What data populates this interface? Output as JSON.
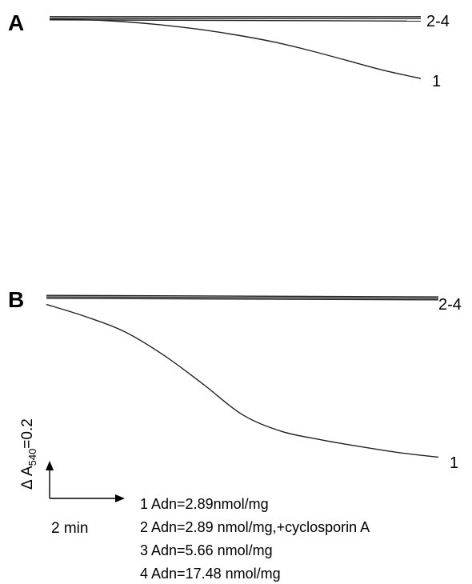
{
  "chart_data": [
    {
      "type": "line",
      "panel": "A",
      "x_unit": "min",
      "y_unit": "ΔA540",
      "xlim": [
        0,
        10
      ],
      "ylim": [
        -0.25,
        0.01
      ],
      "series": [
        {
          "id": "1",
          "label": "1",
          "x": [
            0,
            1,
            2,
            3,
            4,
            5,
            6,
            7,
            8,
            9,
            10
          ],
          "y": [
            0,
            -0.001,
            -0.004,
            -0.009,
            -0.016,
            -0.025,
            -0.036,
            -0.05,
            -0.066,
            -0.082,
            -0.095
          ]
        },
        {
          "id": "2",
          "label": "2-4",
          "x": [
            0,
            10
          ],
          "y": [
            0.004,
            0.004
          ]
        },
        {
          "id": "3",
          "label": "2-4",
          "x": [
            0,
            10
          ],
          "y": [
            0.001,
            0.001
          ]
        },
        {
          "id": "4",
          "label": "2-4",
          "x": [
            0,
            10
          ],
          "y": [
            -0.001,
            -0.003
          ]
        }
      ],
      "trace_label_main": "1",
      "trace_label_group": "2-4"
    },
    {
      "type": "line",
      "panel": "B",
      "x_unit": "min",
      "y_unit": "ΔA540",
      "xlim": [
        0,
        10
      ],
      "ylim": [
        -0.25,
        0.01
      ],
      "series": [
        {
          "id": "1",
          "label": "1",
          "x": [
            0,
            1,
            2,
            3,
            4,
            5,
            6,
            7,
            8,
            9,
            10
          ],
          "y": [
            -0.009,
            -0.025,
            -0.045,
            -0.076,
            -0.114,
            -0.154,
            -0.176,
            -0.187,
            -0.196,
            -0.204,
            -0.21
          ]
        },
        {
          "id": "2",
          "label": "2-4",
          "x": [
            0,
            10
          ],
          "y": [
            0.003,
            0.001
          ]
        },
        {
          "id": "3",
          "label": "2-4",
          "x": [
            0,
            10
          ],
          "y": [
            0.001,
            -0.001
          ]
        },
        {
          "id": "4",
          "label": "2-4",
          "x": [
            0,
            10
          ],
          "y": [
            -0.001,
            -0.003
          ]
        }
      ],
      "trace_label_main": "1",
      "trace_label_group": "2-4"
    }
  ],
  "panels": {
    "a_letter": "A",
    "b_letter": "B"
  },
  "scale_bar": {
    "time_label": "2 min",
    "absorbance_prefix": "Δ A",
    "absorbance_subscript": "540",
    "absorbance_suffix": "=0.2",
    "time_value_min": 2,
    "absorbance_value": 0.2
  },
  "legend": {
    "items": [
      "1 Adn=2.89nmol/mg",
      "2 Adn=2.89 nmol/mg,+cyclosporin A",
      "3 Adn=5.66 nmol/mg",
      "4 Adn=17.48 nmol/mg"
    ]
  },
  "colors": {
    "trace": "#222222",
    "text": "#000000",
    "background": "#ffffff"
  }
}
